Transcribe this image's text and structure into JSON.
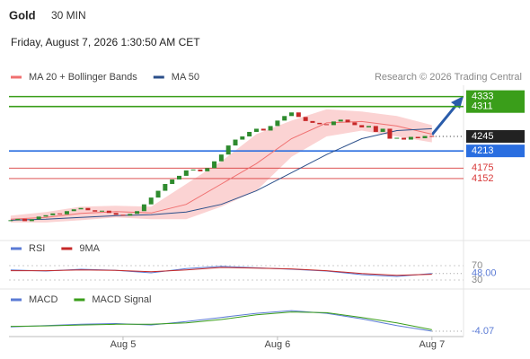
{
  "header": {
    "title": "Gold",
    "interval": "30 MIN",
    "datetime": "Friday, August 7, 2026 1:30:50 AM CET",
    "copyright": "Research © 2026 Trading Central"
  },
  "chart_data": [
    {
      "type": "candlestick",
      "up_color": "#2e8b2e",
      "down_color": "#c62828",
      "close": [
        4060,
        4063,
        4058,
        4062,
        4068,
        4071,
        4075,
        4073,
        4080,
        4084,
        4087,
        4082,
        4079,
        4081,
        4076,
        4072,
        4070,
        4074,
        4080,
        4095,
        4110,
        4125,
        4140,
        4150,
        4158,
        4170,
        4172,
        4168,
        4175,
        4190,
        4205,
        4225,
        4238,
        4245,
        4255,
        4262,
        4258,
        4268,
        4280,
        4290,
        4298,
        4288,
        4279,
        4275,
        4272,
        4270,
        4278,
        4282,
        4276,
        4270,
        4265,
        4268,
        4255,
        4262,
        4240,
        4242,
        4238,
        4244,
        4241,
        4246,
        4245
      ],
      "xlim": [
        -0.5,
        64.5
      ],
      "ylim": [
        4027,
        4358
      ],
      "xticks": [
        {
          "value": 16,
          "label": "Aug 5"
        },
        {
          "value": 38,
          "label": "Aug 6"
        },
        {
          "value": 60,
          "label": "Aug 7"
        }
      ],
      "overlays": [
        {
          "name": "MA 20 + Bollinger Bands",
          "color": "#f07070",
          "band_color": "#fbd3d3",
          "x": [
            0,
            5,
            10,
            15,
            20,
            25,
            30,
            35,
            40,
            45,
            50,
            55,
            60
          ],
          "values": [
            4062,
            4066,
            4075,
            4079,
            4076,
            4095,
            4140,
            4185,
            4240,
            4275,
            4278,
            4268,
            4250
          ],
          "upper": [
            4070,
            4078,
            4090,
            4092,
            4090,
            4140,
            4190,
            4250,
            4280,
            4305,
            4300,
            4290,
            4270
          ],
          "lower": [
            4055,
            4055,
            4060,
            4066,
            4062,
            4062,
            4090,
            4125,
            4200,
            4245,
            4258,
            4245,
            4232
          ]
        },
        {
          "name": "MA 50",
          "color": "#2b4f8a",
          "x": [
            0,
            5,
            10,
            15,
            20,
            25,
            30,
            35,
            40,
            45,
            50,
            55,
            60
          ],
          "values": [
            4060,
            4062,
            4066,
            4070,
            4072,
            4078,
            4095,
            4125,
            4165,
            4205,
            4240,
            4258,
            4262
          ]
        }
      ],
      "levels": [
        {
          "value": 4333,
          "color": "#3a9e1a",
          "box": true
        },
        {
          "value": 4311,
          "color": "#3a9e1a",
          "box": true
        },
        {
          "value": 4245,
          "color": "#222222",
          "box": true,
          "dotted": true
        },
        {
          "value": 4213,
          "color": "#2a6ee0",
          "box": true
        },
        {
          "value": 4175,
          "color": "#d83a3a",
          "box": false
        },
        {
          "value": 4152,
          "color": "#d83a3a",
          "box": false
        }
      ]
    },
    {
      "type": "line",
      "xlim": [
        -0.5,
        64.5
      ],
      "ylim": [
        15,
        90
      ],
      "yticks": [
        70,
        30
      ],
      "current": {
        "value": 48,
        "label": "48.00"
      },
      "series": [
        {
          "name": "RSI",
          "color": "#5b7bd5",
          "x": [
            0,
            5,
            10,
            15,
            20,
            25,
            30,
            35,
            40,
            45,
            50,
            55,
            60
          ],
          "values": [
            58,
            55,
            60,
            57,
            50,
            62,
            68,
            64,
            60,
            55,
            45,
            40,
            48
          ]
        },
        {
          "name": "9MA",
          "color": "#c62828",
          "x": [
            0,
            5,
            10,
            15,
            20,
            25,
            30,
            35,
            40,
            45,
            50,
            55,
            60
          ],
          "values": [
            56,
            56,
            58,
            57,
            53,
            58,
            65,
            63,
            61,
            56,
            48,
            43,
            46
          ]
        }
      ]
    },
    {
      "type": "line",
      "xlim": [
        -0.5,
        64.5
      ],
      "ylim": [
        -8,
        15
      ],
      "current": -4.07,
      "series": [
        {
          "name": "MACD",
          "color": "#5b7bd5",
          "x": [
            0,
            5,
            10,
            15,
            20,
            25,
            30,
            35,
            40,
            45,
            50,
            55,
            60
          ],
          "values": [
            -1,
            0,
            1,
            1.5,
            0.5,
            3,
            6,
            9,
            11,
            9,
            5,
            0,
            -4.07
          ]
        },
        {
          "name": "MACD Signal",
          "color": "#3a9e1a",
          "x": [
            0,
            5,
            10,
            15,
            20,
            25,
            30,
            35,
            40,
            45,
            50,
            55,
            60
          ],
          "values": [
            -0.5,
            -0.2,
            0.5,
            1,
            1,
            2,
            4.5,
            8,
            10,
            9.5,
            6,
            2,
            -3
          ]
        }
      ]
    }
  ]
}
